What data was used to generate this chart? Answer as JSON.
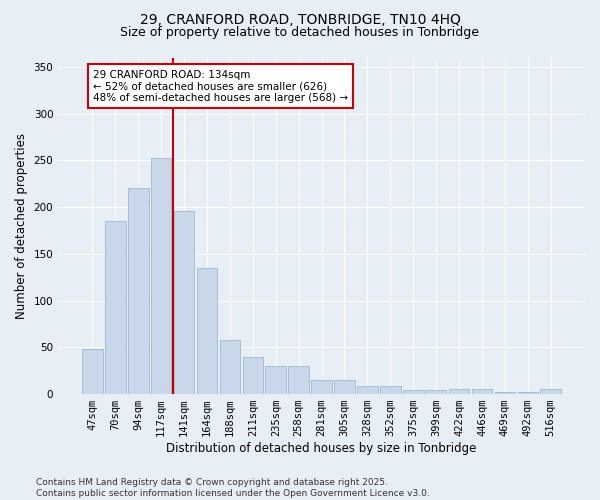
{
  "title": "29, CRANFORD ROAD, TONBRIDGE, TN10 4HQ",
  "subtitle": "Size of property relative to detached houses in Tonbridge",
  "xlabel": "Distribution of detached houses by size in Tonbridge",
  "ylabel": "Number of detached properties",
  "categories": [
    "47sqm",
    "70sqm",
    "94sqm",
    "117sqm",
    "141sqm",
    "164sqm",
    "188sqm",
    "211sqm",
    "235sqm",
    "258sqm",
    "281sqm",
    "305sqm",
    "328sqm",
    "352sqm",
    "375sqm",
    "399sqm",
    "422sqm",
    "446sqm",
    "469sqm",
    "492sqm",
    "516sqm"
  ],
  "values": [
    48,
    185,
    220,
    253,
    196,
    135,
    58,
    40,
    30,
    30,
    15,
    15,
    9,
    9,
    4,
    4,
    5,
    5,
    2,
    2,
    5
  ],
  "bar_color": "#c8d8ea",
  "bar_edge_color": "#a0b8cc",
  "highlight_line_color": "#cc0000",
  "highlight_line_index": 4,
  "annotation_text": "29 CRANFORD ROAD: 134sqm\n← 52% of detached houses are smaller (626)\n48% of semi-detached houses are larger (568) →",
  "annotation_box_edgecolor": "#cc0000",
  "ylim": [
    0,
    360
  ],
  "yticks": [
    0,
    50,
    100,
    150,
    200,
    250,
    300,
    350
  ],
  "background_color": "#e8eef6",
  "grid_color": "#ffffff",
  "footer": "Contains HM Land Registry data © Crown copyright and database right 2025.\nContains public sector information licensed under the Open Government Licence v3.0.",
  "title_fontsize": 10,
  "subtitle_fontsize": 9,
  "axis_label_fontsize": 8.5,
  "tick_fontsize": 7.5,
  "footer_fontsize": 6.5,
  "annotation_fontsize": 7.5
}
